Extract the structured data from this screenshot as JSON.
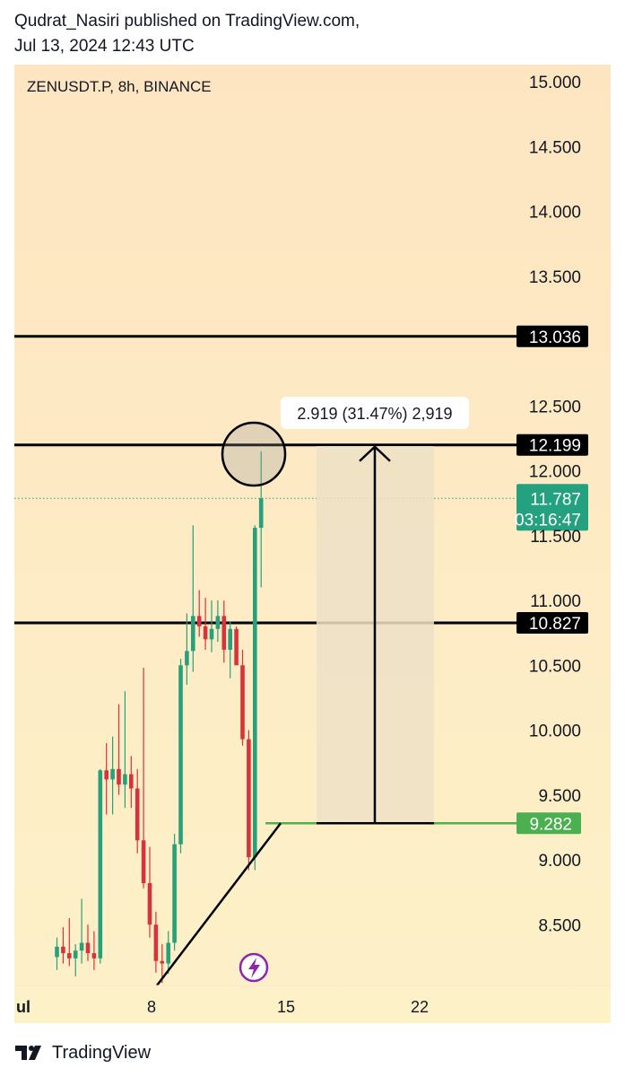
{
  "header": {
    "line1": "Qudrat_Nasiri published on TradingView.com,",
    "line2": "Jul 13, 2024 12:43 UTC"
  },
  "footer": {
    "brand": "TradingView"
  },
  "colors": {
    "bg_top": "#fde5c1",
    "bg_bottom": "#fdf1c8",
    "up": "#26a17b",
    "down": "#d8323a",
    "level": "#000000",
    "support": "#4caf50",
    "current": "#24a17e",
    "lightning": "#8e24aa"
  },
  "chart_data": {
    "type": "candlestick",
    "title": "ZENUSDT.P, 8h, BINANCE",
    "x_tick_labels": [
      "ul",
      "8",
      "15",
      "22"
    ],
    "y_tick_labels": [
      "15.000",
      "14.500",
      "14.000",
      "13.500",
      "12.500",
      "12.000",
      "11.500",
      "11.000",
      "10.500",
      "10.000",
      "9.500",
      "9.000",
      "8.500"
    ],
    "ylim": [
      8.02,
      15.13
    ],
    "candles": [
      {
        "o": 8.25,
        "h": 8.4,
        "l": 8.15,
        "c": 8.33
      },
      {
        "o": 8.33,
        "h": 8.48,
        "l": 8.2,
        "c": 8.28
      },
      {
        "o": 8.28,
        "h": 8.55,
        "l": 8.18,
        "c": 8.24
      },
      {
        "o": 8.24,
        "h": 8.35,
        "l": 8.1,
        "c": 8.3
      },
      {
        "o": 8.3,
        "h": 8.7,
        "l": 8.2,
        "c": 8.36
      },
      {
        "o": 8.36,
        "h": 8.5,
        "l": 8.22,
        "c": 8.28
      },
      {
        "o": 8.28,
        "h": 8.45,
        "l": 8.15,
        "c": 8.24
      },
      {
        "o": 8.24,
        "h": 9.7,
        "l": 8.2,
        "c": 9.69
      },
      {
        "o": 9.69,
        "h": 9.9,
        "l": 9.35,
        "c": 9.62
      },
      {
        "o": 9.62,
        "h": 9.95,
        "l": 9.35,
        "c": 9.7
      },
      {
        "o": 9.7,
        "h": 10.2,
        "l": 9.5,
        "c": 9.58
      },
      {
        "o": 9.58,
        "h": 10.3,
        "l": 9.4,
        "c": 9.66
      },
      {
        "o": 9.66,
        "h": 9.8,
        "l": 9.4,
        "c": 9.55
      },
      {
        "o": 9.55,
        "h": 9.7,
        "l": 9.05,
        "c": 9.15
      },
      {
        "o": 9.15,
        "h": 10.48,
        "l": 8.78,
        "c": 8.82
      },
      {
        "o": 8.82,
        "h": 9.1,
        "l": 8.4,
        "c": 8.5
      },
      {
        "o": 8.5,
        "h": 8.6,
        "l": 8.13,
        "c": 8.22
      },
      {
        "o": 8.22,
        "h": 8.35,
        "l": 8.05,
        "c": 8.2
      },
      {
        "o": 8.2,
        "h": 8.45,
        "l": 8.12,
        "c": 8.36
      },
      {
        "o": 8.36,
        "h": 9.2,
        "l": 8.3,
        "c": 9.12
      },
      {
        "o": 9.12,
        "h": 10.55,
        "l": 9.05,
        "c": 10.5
      },
      {
        "o": 10.5,
        "h": 10.9,
        "l": 10.35,
        "c": 10.61
      },
      {
        "o": 10.61,
        "h": 11.58,
        "l": 10.45,
        "c": 10.88
      },
      {
        "o": 10.88,
        "h": 11.08,
        "l": 10.72,
        "c": 10.8
      },
      {
        "o": 10.8,
        "h": 11.02,
        "l": 10.62,
        "c": 10.7
      },
      {
        "o": 10.7,
        "h": 11.0,
        "l": 10.6,
        "c": 10.78
      },
      {
        "o": 10.78,
        "h": 11.0,
        "l": 10.68,
        "c": 10.88
      },
      {
        "o": 10.88,
        "h": 11.0,
        "l": 10.52,
        "c": 10.62
      },
      {
        "o": 10.62,
        "h": 10.84,
        "l": 10.4,
        "c": 10.78
      },
      {
        "o": 10.78,
        "h": 10.8,
        "l": 10.5,
        "c": 10.5
      },
      {
        "o": 10.5,
        "h": 10.62,
        "l": 9.88,
        "c": 9.93
      },
      {
        "o": 9.93,
        "h": 10.0,
        "l": 8.92,
        "c": 9.02
      },
      {
        "o": 9.02,
        "h": 11.58,
        "l": 8.92,
        "c": 11.56
      },
      {
        "o": 11.56,
        "h": 12.15,
        "l": 11.1,
        "c": 11.787
      }
    ],
    "horizontal_levels": [
      {
        "value": 13.036,
        "label": "13.036"
      },
      {
        "value": 12.199,
        "label": "12.199"
      },
      {
        "value": 10.827,
        "label": "10.827"
      }
    ],
    "support_level": {
      "value": 9.282,
      "label": "9.282"
    },
    "current_price": {
      "value": 11.787,
      "label": "11.787",
      "countdown": "03:16:47"
    },
    "measure_label": "2.919 (31.47%) 2,919"
  }
}
